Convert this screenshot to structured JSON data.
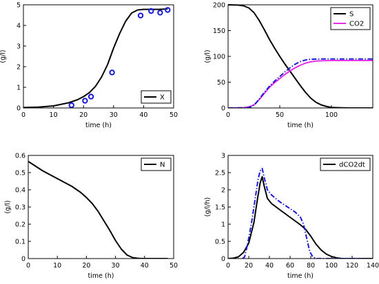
{
  "chart_data": [
    {
      "type": "line",
      "id": "X",
      "xlabel": "time (h)",
      "ylabel": "(g/l)",
      "xlim": [
        0,
        50
      ],
      "ylim": [
        0,
        5
      ],
      "xticks": [
        0,
        10,
        20,
        30,
        40,
        50
      ],
      "yticks": [
        0,
        1,
        2,
        3,
        4,
        5
      ],
      "legend": "bottom-right",
      "grid": false,
      "series": [
        {
          "name": "X",
          "color": "#000000",
          "dash": "solid",
          "points": [
            [
              0,
              0.02
            ],
            [
              5,
              0.04
            ],
            [
              10,
              0.1
            ],
            [
              15,
              0.25
            ],
            [
              18,
              0.4
            ],
            [
              20,
              0.55
            ],
            [
              22,
              0.75
            ],
            [
              24,
              1.05
            ],
            [
              26,
              1.5
            ],
            [
              28,
              2.1
            ],
            [
              30,
              2.9
            ],
            [
              32,
              3.6
            ],
            [
              34,
              4.2
            ],
            [
              36,
              4.6
            ],
            [
              38,
              4.75
            ],
            [
              40,
              4.78
            ],
            [
              45,
              4.78
            ],
            [
              48,
              4.8
            ]
          ]
        },
        {
          "name": "",
          "color": "#1a1adb",
          "marker": "circle",
          "points": [
            [
              16,
              0.13
            ],
            [
              20.5,
              0.35
            ],
            [
              22.5,
              0.55
            ],
            [
              29.5,
              1.72
            ],
            [
              39,
              4.48
            ],
            [
              42.5,
              4.7
            ],
            [
              45.5,
              4.62
            ],
            [
              48,
              4.75
            ]
          ]
        }
      ]
    },
    {
      "type": "line",
      "id": "S-CO2",
      "xlabel": "time (h)",
      "ylabel": "(g/l)",
      "xlim": [
        0,
        140
      ],
      "ylim": [
        0,
        200
      ],
      "xticks": [
        0,
        50,
        100
      ],
      "yticks": [
        0,
        50,
        100,
        150,
        200
      ],
      "legend": "top-right",
      "grid": false,
      "series": [
        {
          "name": "S",
          "color": "#000000",
          "dash": "solid",
          "points": [
            [
              0,
              200
            ],
            [
              10,
              199.5
            ],
            [
              15,
              198
            ],
            [
              20,
              194
            ],
            [
              25,
              185
            ],
            [
              30,
              170
            ],
            [
              35,
              152
            ],
            [
              40,
              133
            ],
            [
              45,
              116
            ],
            [
              50,
              100
            ],
            [
              55,
              85
            ],
            [
              60,
              71
            ],
            [
              65,
              57
            ],
            [
              70,
              43
            ],
            [
              75,
              30
            ],
            [
              80,
              19
            ],
            [
              85,
              11
            ],
            [
              90,
              6
            ],
            [
              95,
              3
            ],
            [
              100,
              1
            ],
            [
              110,
              0.3
            ],
            [
              120,
              0
            ],
            [
              140,
              0
            ]
          ]
        },
        {
          "name": "CO2",
          "color": "#e62ee6",
          "dash": "solid",
          "points": [
            [
              0,
              0
            ],
            [
              15,
              0.5
            ],
            [
              20,
              2
            ],
            [
              25,
              6
            ],
            [
              30,
              16
            ],
            [
              35,
              28
            ],
            [
              40,
              40
            ],
            [
              45,
              49
            ],
            [
              50,
              57
            ],
            [
              55,
              65
            ],
            [
              60,
              72
            ],
            [
              65,
              78
            ],
            [
              70,
              83
            ],
            [
              75,
              87
            ],
            [
              80,
              89.5
            ],
            [
              85,
              91
            ],
            [
              90,
              91.5
            ],
            [
              100,
              92
            ],
            [
              140,
              92
            ]
          ]
        },
        {
          "name": "",
          "color": "#1a1adb",
          "dash": "dashdot",
          "points": [
            [
              0,
              0
            ],
            [
              18,
              0.5
            ],
            [
              22,
              2
            ],
            [
              26,
              7
            ],
            [
              30,
              17
            ],
            [
              35,
              30
            ],
            [
              40,
              42
            ],
            [
              45,
              52
            ],
            [
              50,
              61
            ],
            [
              55,
              70
            ],
            [
              60,
              78
            ],
            [
              65,
              85
            ],
            [
              70,
              90
            ],
            [
              75,
              93
            ],
            [
              80,
              94.5
            ],
            [
              90,
              95
            ],
            [
              140,
              95
            ]
          ]
        }
      ]
    },
    {
      "type": "line",
      "id": "N",
      "xlabel": "time (h)",
      "ylabel": "(g/l)",
      "xlim": [
        0,
        50
      ],
      "ylim": [
        0,
        0.6
      ],
      "xticks": [
        0,
        10,
        20,
        30,
        40,
        50
      ],
      "yticks": [
        0,
        0.1,
        0.2,
        0.3,
        0.4,
        0.5,
        0.6
      ],
      "legend": "top-right",
      "grid": false,
      "series": [
        {
          "name": "N",
          "color": "#000000",
          "dash": "solid",
          "points": [
            [
              0,
              0.565
            ],
            [
              5,
              0.51
            ],
            [
              10,
              0.465
            ],
            [
              15,
              0.42
            ],
            [
              18,
              0.385
            ],
            [
              20,
              0.355
            ],
            [
              22,
              0.32
            ],
            [
              24,
              0.275
            ],
            [
              26,
              0.22
            ],
            [
              28,
              0.165
            ],
            [
              30,
              0.105
            ],
            [
              32,
              0.055
            ],
            [
              34,
              0.02
            ],
            [
              36,
              0.005
            ],
            [
              38,
              0.001
            ],
            [
              40,
              0
            ],
            [
              48,
              0
            ]
          ]
        }
      ]
    },
    {
      "type": "line",
      "id": "dCO2dt",
      "xlabel": "time (h)",
      "ylabel": "(g/l/h)",
      "xlim": [
        0,
        140
      ],
      "ylim": [
        0,
        3
      ],
      "xticks": [
        0,
        20,
        40,
        60,
        80,
        100,
        120,
        140
      ],
      "yticks": [
        0,
        0.5,
        1,
        1.5,
        2,
        2.5,
        3
      ],
      "legend": "top-right",
      "grid": false,
      "series": [
        {
          "name": "dCO2dt",
          "color": "#000000",
          "dash": "solid",
          "points": [
            [
              0,
              0
            ],
            [
              5,
              0.01
            ],
            [
              10,
              0.05
            ],
            [
              15,
              0.18
            ],
            [
              20,
              0.45
            ],
            [
              25,
              1.05
            ],
            [
              28,
              1.65
            ],
            [
              31,
              2.2
            ],
            [
              33,
              2.38
            ],
            [
              35,
              2.1
            ],
            [
              38,
              1.75
            ],
            [
              42,
              1.6
            ],
            [
              50,
              1.42
            ],
            [
              60,
              1.2
            ],
            [
              70,
              0.98
            ],
            [
              75,
              0.85
            ],
            [
              80,
              0.65
            ],
            [
              85,
              0.42
            ],
            [
              90,
              0.25
            ],
            [
              95,
              0.13
            ],
            [
              100,
              0.06
            ],
            [
              105,
              0.02
            ],
            [
              110,
              0
            ],
            [
              140,
              0
            ]
          ]
        },
        {
          "name": "",
          "color": "#1a1adb",
          "dash": "dashdot",
          "points": [
            [
              14,
              0
            ],
            [
              16,
              0.05
            ],
            [
              18,
              0.3
            ],
            [
              20,
              0.6
            ],
            [
              23,
              1.1
            ],
            [
              26,
              1.7
            ],
            [
              29,
              2.3
            ],
            [
              31,
              2.55
            ],
            [
              33,
              2.62
            ],
            [
              35,
              2.35
            ],
            [
              38,
              2.0
            ],
            [
              42,
              1.85
            ],
            [
              50,
              1.65
            ],
            [
              60,
              1.45
            ],
            [
              65,
              1.35
            ],
            [
              70,
              1.2
            ],
            [
              73,
              1.0
            ],
            [
              76,
              0.6
            ],
            [
              79,
              0.2
            ],
            [
              82,
              0.05
            ],
            [
              85,
              0
            ],
            [
              130,
              0
            ]
          ]
        }
      ]
    }
  ]
}
